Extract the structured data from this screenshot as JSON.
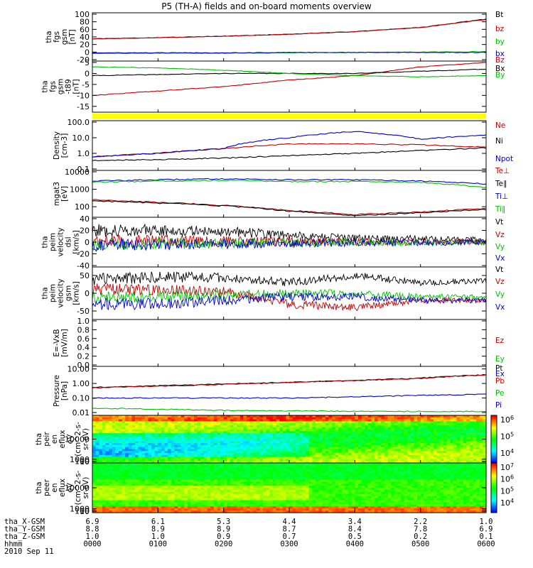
{
  "title": "P5 (TH-A) fields and on-board moments overview",
  "colors": {
    "black": "#000000",
    "red": "#c00000",
    "green": "#00c000",
    "blue": "#0000c8",
    "yellow": "#ffff00",
    "axis": "#000000"
  },
  "chart_data": [
    {
      "type": "line",
      "ylabel": [
        "tha",
        "fgs",
        "gsm",
        "[nT]"
      ],
      "ylim": [
        -20,
        100
      ],
      "yticks": [
        -20,
        0,
        20,
        40,
        60,
        80,
        100
      ],
      "series": [
        {
          "name": "Bt",
          "color": "black",
          "values": [
            35,
            38,
            42,
            47,
            54,
            65,
            87
          ]
        },
        {
          "name": "bz",
          "color": "red",
          "values": [
            35,
            38,
            42,
            47,
            54,
            65,
            86
          ]
        },
        {
          "name": "by",
          "color": "green",
          "values": [
            -4,
            -3,
            -3,
            -2,
            -1,
            0,
            1
          ]
        },
        {
          "name": "bx",
          "color": "blue",
          "values": [
            -2,
            -2,
            -2,
            -1,
            -1,
            -1,
            -1
          ]
        }
      ]
    },
    {
      "type": "line",
      "ylabel": [
        "tha",
        "fgs",
        "gsm",
        "-t89",
        "[nT]"
      ],
      "ylim": [
        -17,
        5
      ],
      "yticks": [
        -15,
        -10,
        -5,
        0,
        5
      ],
      "series": [
        {
          "name": "Bz",
          "color": "red",
          "values": [
            -10,
            -8,
            -6,
            -3,
            -1,
            3,
            5
          ]
        },
        {
          "name": "Bx",
          "color": "black",
          "values": [
            -1,
            -0.5,
            0,
            0,
            0,
            1,
            2
          ]
        },
        {
          "name": "By",
          "color": "green",
          "values": [
            3,
            2.5,
            1.5,
            0,
            -1,
            -1.5,
            -1
          ]
        }
      ]
    },
    {
      "type": "line",
      "log": true,
      "ylabel": [
        "Density",
        "[cm-3]"
      ],
      "ylim": [
        0.1,
        100
      ],
      "yticks": [
        "0.1",
        "1.0",
        "10.0",
        "100.0"
      ],
      "series": [
        {
          "name": "Ne",
          "color": "red",
          "values": [
            0.6,
            1.0,
            2.0,
            4.0,
            4.0,
            3.5,
            2.5
          ]
        },
        {
          "name": "Ni",
          "color": "black",
          "values": [
            0.35,
            0.4,
            0.5,
            0.7,
            1.0,
            1.5,
            2.2
          ]
        },
        {
          "name": "Npot",
          "color": "blue",
          "values": [
            0.6,
            1.0,
            2.0,
            10.0,
            25.0,
            8.0,
            15.0
          ]
        }
      ]
    },
    {
      "type": "line",
      "log": true,
      "ylabel": [
        "mgat3",
        "[eV]"
      ],
      "ylim": [
        30,
        10000
      ],
      "yticks": [
        "100",
        "1000",
        "10000"
      ],
      "series": [
        {
          "name": "Te⊥",
          "color": "red",
          "values": [
            250,
            180,
            120,
            60,
            35,
            50,
            80
          ]
        },
        {
          "name": "Te∥",
          "color": "black",
          "values": [
            220,
            160,
            110,
            55,
            30,
            45,
            70
          ]
        },
        {
          "name": "Ti⊥",
          "color": "blue",
          "values": [
            3000,
            3500,
            4000,
            3500,
            3500,
            3000,
            2000
          ]
        },
        {
          "name": "Ti∥",
          "color": "green",
          "values": [
            2500,
            3000,
            3200,
            2800,
            2800,
            2500,
            1200
          ]
        }
      ]
    },
    {
      "type": "line",
      "ylabel": [
        "tha",
        "peim",
        "velocity",
        "dsl",
        "[km/s]"
      ],
      "ylim": [
        -40,
        40
      ],
      "yticks": [
        -40,
        -20,
        0,
        20,
        40
      ],
      "series": [
        {
          "name": "Vt",
          "color": "black",
          "values": [
            20,
            20,
            18,
            12,
            6,
            6,
            4
          ]
        },
        {
          "name": "Vz",
          "color": "red",
          "values": [
            2,
            2,
            1,
            1,
            0,
            0,
            0
          ]
        },
        {
          "name": "Vy",
          "color": "green",
          "values": [
            -4,
            -3,
            -2,
            -1,
            -1,
            -1,
            0
          ]
        },
        {
          "name": "Vx",
          "color": "blue",
          "values": [
            -5,
            -4,
            -3,
            -2,
            -1,
            -1,
            0
          ]
        }
      ]
    },
    {
      "type": "line",
      "ylabel": [
        "tha",
        "peim",
        "velocity",
        "gsm",
        "[km/s]"
      ],
      "ylim": [
        -70,
        70
      ],
      "yticks": [
        -50,
        0,
        50
      ],
      "series": [
        {
          "name": "Vt",
          "color": "black",
          "values": [
            40,
            45,
            45,
            30,
            50,
            30,
            35
          ]
        },
        {
          "name": "Vz",
          "color": "red",
          "values": [
            10,
            10,
            5,
            -30,
            -40,
            -20,
            -20
          ]
        },
        {
          "name": "Vy",
          "color": "green",
          "values": [
            -10,
            -10,
            -5,
            0,
            0,
            -10,
            -10
          ]
        },
        {
          "name": "Vx",
          "color": "blue",
          "values": [
            -30,
            -30,
            -20,
            -10,
            -10,
            -20,
            -20
          ]
        }
      ]
    },
    {
      "type": "line",
      "ylabel": [
        "E=-VxB",
        "[mV/m]"
      ],
      "ylim": [
        0,
        1
      ],
      "yticks": [
        "0.0",
        "0.2",
        "0.4",
        "0.6",
        "0.8",
        "1.0"
      ],
      "series": [
        {
          "name": "Ez",
          "color": "red",
          "values": []
        },
        {
          "name": "Ey",
          "color": "green",
          "values": []
        },
        {
          "name": "Ex",
          "color": "blue",
          "values": []
        }
      ]
    },
    {
      "type": "line",
      "log": true,
      "ylabel": [
        "Pressure",
        "[nPa]"
      ],
      "ylim": [
        0.008,
        12
      ],
      "yticks": [
        "0.01",
        "0.10",
        "1.00",
        "10.00"
      ],
      "series": [
        {
          "name": "Pt",
          "color": "black",
          "values": [
            0.55,
            0.7,
            0.9,
            1.2,
            1.6,
            2.3,
            4.0
          ]
        },
        {
          "name": "Pb",
          "color": "red",
          "values": [
            0.5,
            0.65,
            0.85,
            1.15,
            1.55,
            2.2,
            3.8
          ]
        },
        {
          "name": "Pe",
          "color": "green",
          "values": [
            0.02,
            0.017,
            0.014,
            0.013,
            0.012,
            0.012,
            0.012
          ]
        },
        {
          "name": "Pi",
          "color": "blue",
          "values": [
            0.1,
            0.1,
            0.1,
            0.1,
            0.12,
            0.15,
            0.18
          ]
        }
      ]
    },
    {
      "type": "heatmap",
      "ylabel": [
        "tha",
        "peir",
        "en",
        "eflux",
        "eV",
        "(cm^2-s-",
        "sr-eV)"
      ],
      "ylim": [
        7,
        20000
      ],
      "yticks": [
        "10",
        "100",
        "1000",
        "10000"
      ],
      "colorbar_ticks": [
        "10^4",
        "10^5",
        "10^6"
      ]
    },
    {
      "type": "heatmap",
      "ylabel": [
        "tha",
        "peer",
        "en",
        "eflux",
        "eV",
        "(cm^2-s-",
        "sr-eV)"
      ],
      "ylim": [
        7,
        20000
      ],
      "yticks": [
        "10",
        "100",
        "1000",
        "10000"
      ],
      "colorbar_ticks": [
        "10^4",
        "10^5",
        "10^6",
        "10^7"
      ]
    }
  ],
  "footer": {
    "rows": [
      {
        "label": "tha_X-GSM",
        "values": [
          "6.9",
          "6.1",
          "5.3",
          "4.4",
          "3.4",
          "2.2",
          "1.0"
        ]
      },
      {
        "label": "tha_Y-GSM",
        "values": [
          "8.8",
          "8.9",
          "8.9",
          "8.7",
          "8.4",
          "7.8",
          "6.9"
        ]
      },
      {
        "label": "tha_Z-GSM",
        "values": [
          "1.0",
          "1.0",
          "0.9",
          "0.7",
          "0.5",
          "0.2",
          "0.1"
        ]
      },
      {
        "label": "hhmm",
        "values": [
          "0000",
          "0100",
          "0200",
          "0300",
          "0400",
          "0500",
          "0600"
        ]
      }
    ],
    "date": "2010 Sep 11"
  }
}
